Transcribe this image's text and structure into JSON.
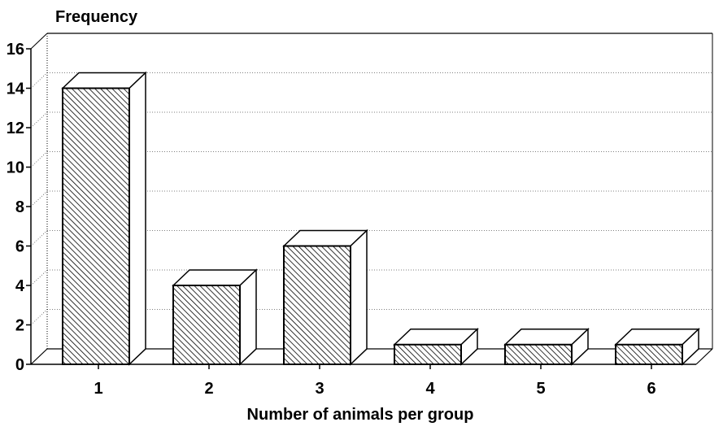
{
  "chart_data": {
    "type": "bar",
    "title": "",
    "ylabel": "Frequency",
    "xlabel": "Number of animals per group",
    "categories": [
      "1",
      "2",
      "3",
      "4",
      "5",
      "6"
    ],
    "values": [
      14,
      4,
      6,
      1,
      1,
      1
    ],
    "ylim": [
      0,
      16
    ],
    "yticks": [
      "0",
      "2",
      "4",
      "6",
      "8",
      "10",
      "12",
      "14",
      "16"
    ],
    "grid": true,
    "legend": "none",
    "bar_style": "3d-hatched",
    "colors": {
      "bar_face": "#ffffff",
      "hatch": "#000000",
      "grid": "#555555",
      "axis": "#000000"
    }
  }
}
